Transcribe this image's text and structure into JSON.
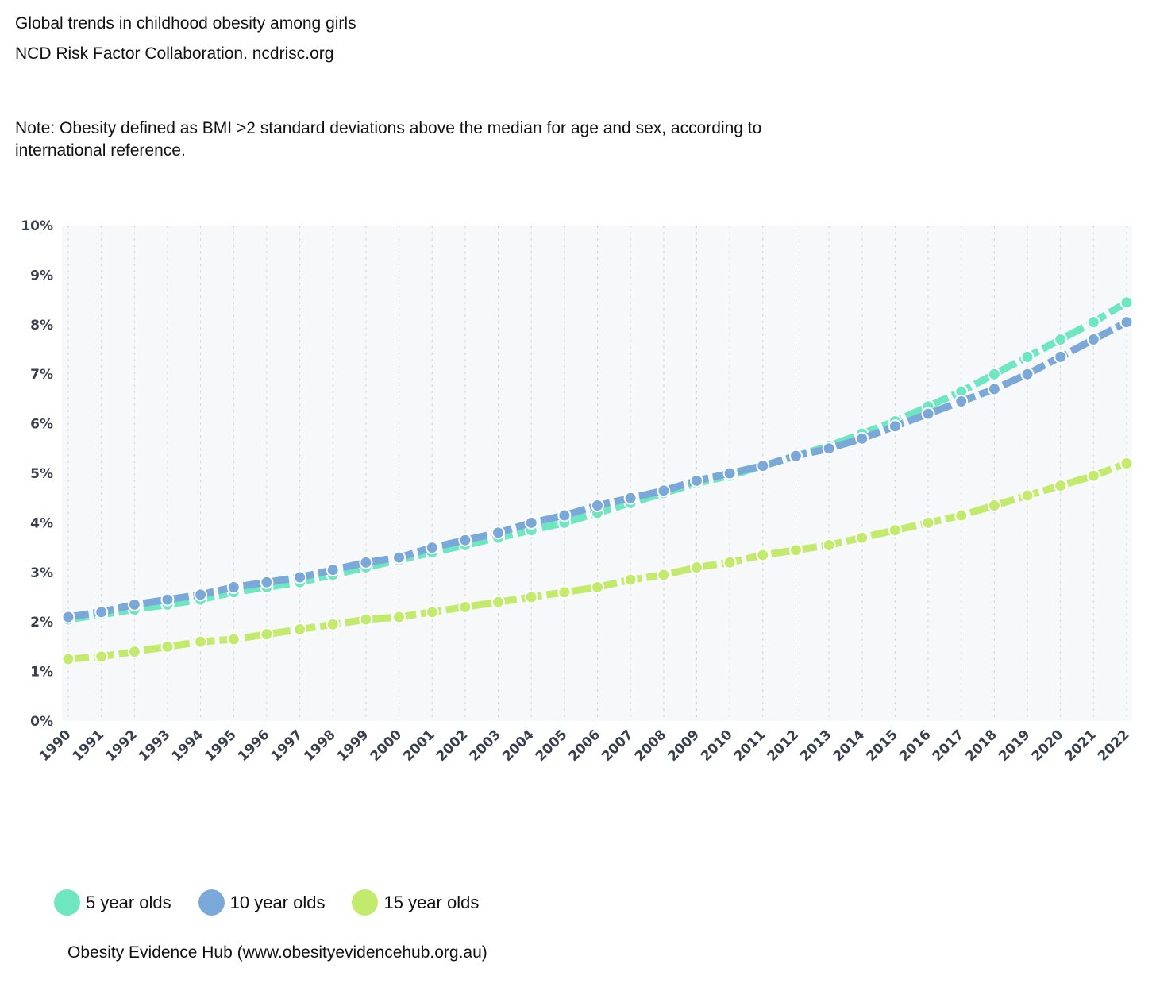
{
  "header": {
    "title": "Global trends in childhood obesity among girls",
    "source": "NCD Risk Factor Collaboration. ncdrisc.org",
    "note": "Note: Obesity defined as BMI >2 standard deviations above the median for age and sex, according to international reference."
  },
  "footer": {
    "attribution": "Obesity Evidence Hub (www.obesityevidencehub.org.au)"
  },
  "colors": {
    "plot_background": "#f7f8fa",
    "gridline": "#d0d4dc"
  },
  "chart_data": {
    "type": "line",
    "title": "Global trends in childhood obesity among girls",
    "xlabel": "",
    "ylabel": "",
    "ylim": [
      0,
      10
    ],
    "y_ticks": [
      "0%",
      "1%",
      "2%",
      "3%",
      "4%",
      "5%",
      "6%",
      "7%",
      "8%",
      "9%",
      "10%"
    ],
    "grid": "vertical dotted",
    "legend_position": "bottom-left",
    "categories": [
      "1990",
      "1991",
      "1992",
      "1993",
      "1994",
      "1995",
      "1996",
      "1997",
      "1998",
      "1999",
      "2000",
      "2001",
      "2002",
      "2003",
      "2004",
      "2005",
      "2006",
      "2007",
      "2008",
      "2009",
      "2010",
      "2011",
      "2012",
      "2013",
      "2014",
      "2015",
      "2016",
      "2017",
      "2018",
      "2019",
      "2020",
      "2021",
      "2022"
    ],
    "series": [
      {
        "name": "5 year olds",
        "color": "#6ee6c0",
        "values": [
          2.05,
          2.15,
          2.25,
          2.35,
          2.45,
          2.6,
          2.7,
          2.8,
          2.95,
          3.1,
          3.25,
          3.4,
          3.55,
          3.7,
          3.85,
          4.0,
          4.2,
          4.4,
          4.6,
          4.8,
          4.95,
          5.15,
          5.35,
          5.55,
          5.8,
          6.05,
          6.35,
          6.65,
          7.0,
          7.35,
          7.7,
          8.05,
          8.45
        ]
      },
      {
        "name": "10 year olds",
        "color": "#7aa8d8",
        "values": [
          2.1,
          2.2,
          2.35,
          2.45,
          2.55,
          2.7,
          2.8,
          2.9,
          3.05,
          3.2,
          3.3,
          3.5,
          3.65,
          3.8,
          4.0,
          4.15,
          4.35,
          4.5,
          4.65,
          4.85,
          5.0,
          5.15,
          5.35,
          5.5,
          5.7,
          5.95,
          6.2,
          6.45,
          6.7,
          7.0,
          7.35,
          7.7,
          8.05
        ]
      },
      {
        "name": "15 year olds",
        "color": "#c2ea6c",
        "values": [
          1.25,
          1.3,
          1.4,
          1.5,
          1.6,
          1.65,
          1.75,
          1.85,
          1.95,
          2.05,
          2.1,
          2.2,
          2.3,
          2.4,
          2.5,
          2.6,
          2.7,
          2.85,
          2.95,
          3.1,
          3.2,
          3.35,
          3.45,
          3.55,
          3.7,
          3.85,
          4.0,
          4.15,
          4.35,
          4.55,
          4.75,
          4.95,
          5.2
        ]
      }
    ]
  }
}
